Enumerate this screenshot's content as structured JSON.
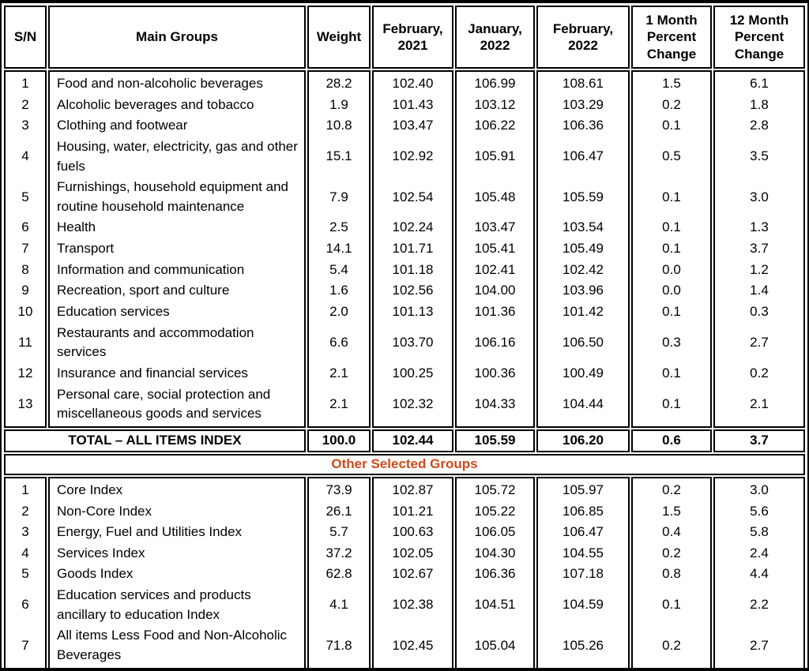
{
  "table": {
    "accent_color": "#D04A1A",
    "columns": [
      "S/N",
      "Main Groups",
      "Weight",
      "February, 2021",
      "January, 2022",
      "February, 2022",
      "1 Month Percent Change",
      "12 Month Percent Change"
    ],
    "main_groups": [
      {
        "sn": "1",
        "name": "Food and non-alcoholic beverages",
        "weight": "28.2",
        "feb21": "102.40",
        "jan22": "106.99",
        "feb22": "108.61",
        "chg1m": "1.5",
        "chg12m": "6.1"
      },
      {
        "sn": "2",
        "name": "Alcoholic beverages and tobacco",
        "weight": "1.9",
        "feb21": "101.43",
        "jan22": "103.12",
        "feb22": "103.29",
        "chg1m": "0.2",
        "chg12m": "1.8"
      },
      {
        "sn": "3",
        "name": "Clothing and footwear",
        "weight": "10.8",
        "feb21": "103.47",
        "jan22": "106.22",
        "feb22": "106.36",
        "chg1m": "0.1",
        "chg12m": "2.8"
      },
      {
        "sn": "4",
        "name": "Housing, water, electricity, gas and other fuels",
        "weight": "15.1",
        "feb21": "102.92",
        "jan22": "105.91",
        "feb22": "106.47",
        "chg1m": "0.5",
        "chg12m": "3.5"
      },
      {
        "sn": "5",
        "name": "Furnishings, household equipment and routine household maintenance",
        "weight": "7.9",
        "feb21": "102.54",
        "jan22": "105.48",
        "feb22": "105.59",
        "chg1m": "0.1",
        "chg12m": "3.0"
      },
      {
        "sn": "6",
        "name": "Health",
        "weight": "2.5",
        "feb21": "102.24",
        "jan22": "103.47",
        "feb22": "103.54",
        "chg1m": "0.1",
        "chg12m": "1.3"
      },
      {
        "sn": "7",
        "name": "Transport",
        "weight": "14.1",
        "feb21": "101.71",
        "jan22": "105.41",
        "feb22": "105.49",
        "chg1m": "0.1",
        "chg12m": "3.7"
      },
      {
        "sn": "8",
        "name": "Information and communication",
        "weight": "5.4",
        "feb21": "101.18",
        "jan22": "102.41",
        "feb22": "102.42",
        "chg1m": "0.0",
        "chg12m": "1.2"
      },
      {
        "sn": "9",
        "name": "Recreation, sport and culture",
        "weight": "1.6",
        "feb21": "102.56",
        "jan22": "104.00",
        "feb22": "103.96",
        "chg1m": "0.0",
        "chg12m": "1.4"
      },
      {
        "sn": "10",
        "name": "Education services",
        "weight": "2.0",
        "feb21": "101.13",
        "jan22": "101.36",
        "feb22": "101.42",
        "chg1m": "0.1",
        "chg12m": "0.3"
      },
      {
        "sn": "11",
        "name": "Restaurants and accommodation services",
        "weight": "6.6",
        "feb21": "103.70",
        "jan22": "106.16",
        "feb22": "106.50",
        "chg1m": "0.3",
        "chg12m": "2.7"
      },
      {
        "sn": "12",
        "name": "Insurance and financial services",
        "weight": "2.1",
        "feb21": "100.25",
        "jan22": "100.36",
        "feb22": "100.49",
        "chg1m": "0.1",
        "chg12m": "0.2"
      },
      {
        "sn": "13",
        "name": "Personal care, social protection and miscellaneous goods and services",
        "weight": "2.1",
        "feb21": "102.32",
        "jan22": "104.33",
        "feb22": "104.44",
        "chg1m": "0.1",
        "chg12m": "2.1"
      }
    ],
    "total": {
      "label": "TOTAL – ALL ITEMS INDEX",
      "weight": "100.0",
      "feb21": "102.44",
      "jan22": "105.59",
      "feb22": "106.20",
      "chg1m": "0.6",
      "chg12m": "3.7"
    },
    "section_header": "Other Selected Groups",
    "other_groups": [
      {
        "sn": "1",
        "name": "Core Index",
        "weight": "73.9",
        "feb21": "102.87",
        "jan22": "105.72",
        "feb22": "105.97",
        "chg1m": "0.2",
        "chg12m": "3.0"
      },
      {
        "sn": "2",
        "name": "Non-Core Index",
        "weight": "26.1",
        "feb21": "101.21",
        "jan22": "105.22",
        "feb22": "106.85",
        "chg1m": "1.5",
        "chg12m": "5.6"
      },
      {
        "sn": "3",
        "name": "Energy, Fuel and Utilities Index",
        "weight": "5.7",
        "feb21": "100.63",
        "jan22": "106.05",
        "feb22": "106.47",
        "chg1m": "0.4",
        "chg12m": "5.8"
      },
      {
        "sn": "4",
        "name": "Services Index",
        "weight": "37.2",
        "feb21": "102.05",
        "jan22": "104.30",
        "feb22": "104.55",
        "chg1m": "0.2",
        "chg12m": "2.4"
      },
      {
        "sn": "5",
        "name": "Goods Index",
        "weight": "62.8",
        "feb21": "102.67",
        "jan22": "106.36",
        "feb22": "107.18",
        "chg1m": "0.8",
        "chg12m": "4.4"
      },
      {
        "sn": "6",
        "name": "Education services and products ancillary to education Index",
        "weight": "4.1",
        "feb21": "102.38",
        "jan22": "104.51",
        "feb22": "104.59",
        "chg1m": "0.1",
        "chg12m": "2.2"
      },
      {
        "sn": "7",
        "name": "All items Less Food and Non-Alcoholic Beverages",
        "weight": "71.8",
        "feb21": "102.45",
        "jan22": "105.04",
        "feb22": "105.26",
        "chg1m": "0.2",
        "chg12m": "2.7"
      }
    ]
  }
}
